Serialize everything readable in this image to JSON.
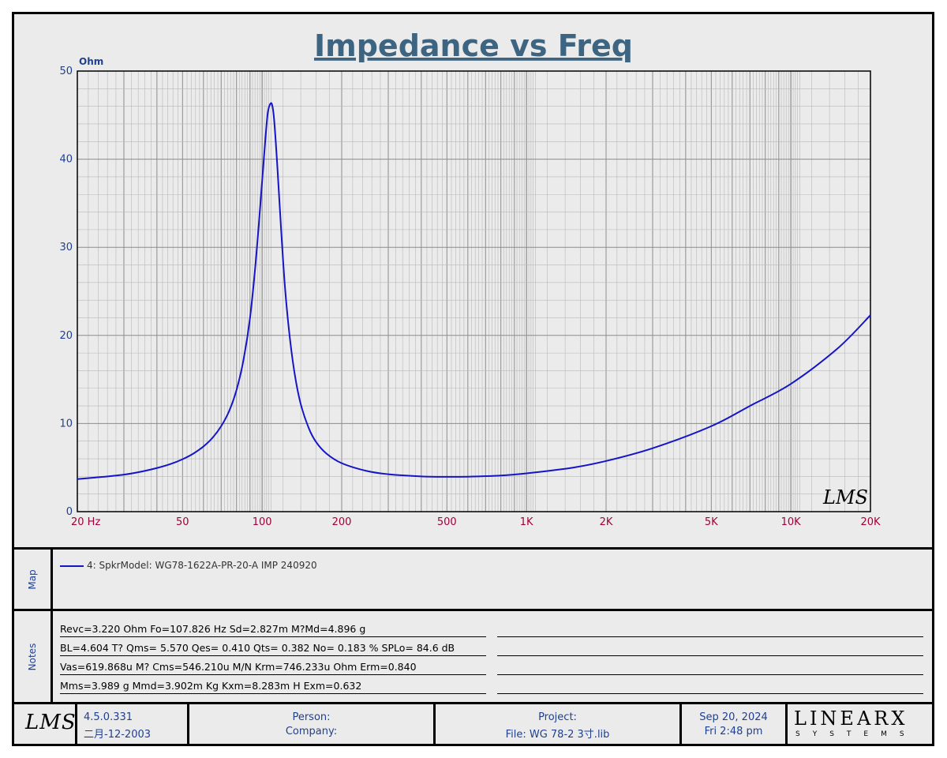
{
  "chart_data": {
    "type": "line",
    "title": "Impedance vs Freq",
    "ylabel": "Ohm",
    "xlabel": "",
    "x_scale": "log",
    "xlim": [
      20,
      20000
    ],
    "ylim": [
      0,
      50
    ],
    "yticks": [
      0,
      10,
      20,
      30,
      40,
      50
    ],
    "xticks": [
      {
        "value": 20,
        "label": "20  Hz"
      },
      {
        "value": 50,
        "label": "50"
      },
      {
        "value": 100,
        "label": "100"
      },
      {
        "value": 200,
        "label": "200"
      },
      {
        "value": 500,
        "label": "500"
      },
      {
        "value": 1000,
        "label": "1K"
      },
      {
        "value": 2000,
        "label": "2K"
      },
      {
        "value": 5000,
        "label": "5K"
      },
      {
        "value": 10000,
        "label": "10K"
      },
      {
        "value": 20000,
        "label": "20K"
      }
    ],
    "grid": true,
    "series": [
      {
        "name": "4: SpkrModel: WG78-1622A-PR-20-A IMP 240920",
        "color": "#1515c8",
        "points": [
          [
            20,
            3.7
          ],
          [
            25,
            3.95
          ],
          [
            30,
            4.2
          ],
          [
            35,
            4.55
          ],
          [
            40,
            4.95
          ],
          [
            45,
            5.4
          ],
          [
            50,
            5.95
          ],
          [
            55,
            6.6
          ],
          [
            60,
            7.4
          ],
          [
            65,
            8.4
          ],
          [
            70,
            9.7
          ],
          [
            75,
            11.4
          ],
          [
            80,
            13.8
          ],
          [
            85,
            17.2
          ],
          [
            90,
            22.0
          ],
          [
            95,
            29.0
          ],
          [
            100,
            37.5
          ],
          [
            103,
            42.5
          ],
          [
            105,
            45.2
          ],
          [
            107,
            46.2
          ],
          [
            109,
            46.2
          ],
          [
            111,
            44.5
          ],
          [
            114,
            39.5
          ],
          [
            118,
            32.0
          ],
          [
            122,
            25.5
          ],
          [
            127,
            20.0
          ],
          [
            133,
            15.5
          ],
          [
            140,
            12.2
          ],
          [
            150,
            9.5
          ],
          [
            160,
            7.9
          ],
          [
            175,
            6.6
          ],
          [
            200,
            5.5
          ],
          [
            250,
            4.6
          ],
          [
            300,
            4.25
          ],
          [
            400,
            4.0
          ],
          [
            500,
            3.95
          ],
          [
            600,
            3.97
          ],
          [
            800,
            4.1
          ],
          [
            1000,
            4.35
          ],
          [
            1500,
            5.0
          ],
          [
            2000,
            5.75
          ],
          [
            3000,
            7.2
          ],
          [
            5000,
            9.7
          ],
          [
            7000,
            12.0
          ],
          [
            10000,
            14.5
          ],
          [
            15000,
            18.5
          ],
          [
            20000,
            22.3
          ]
        ]
      }
    ]
  },
  "map": {
    "label": "Map",
    "legend_text": "4: SpkrModel: WG78-1622A-PR-20-A IMP 240920"
  },
  "notes": {
    "label": "Notes",
    "lines": [
      "Revc=3.220 Ohm  Fo=107.826 Hz  Sd=2.827m M?Md=4.896 g",
      "BL=4.604 T?  Qms= 5.570  Qes= 0.410  Qts= 0.382  No= 0.183 %  SPLo= 84.6 dB",
      "Vas=619.868u M? Cms=546.210u M/N  Krm=746.233u Ohm  Erm=0.840",
      "Mms=3.989 g  Mmd=3.902m Kg  Kxm=8.283m H  Exm=0.632"
    ]
  },
  "footer": {
    "logo": "LMS",
    "version": "4.5.0.331",
    "build_date": "二月-12-2003",
    "person": "Person:",
    "company": "Company:",
    "project": "Project:",
    "file": "File: WG 78-2 3寸.lib",
    "date": "Sep 20, 2024",
    "time": "Fri  2:48 pm",
    "brand": "LINEARX",
    "brand_sub": "SYSTEMS"
  },
  "watermark": "LMS"
}
